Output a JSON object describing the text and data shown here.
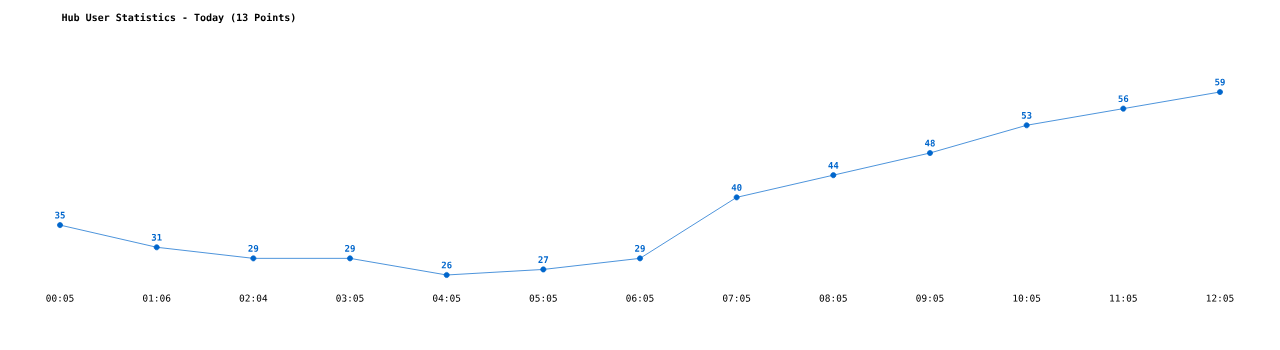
{
  "chart_data": {
    "type": "line",
    "title": "Hub User Statistics - Today (13 Points)",
    "categories": [
      "00:05",
      "01:06",
      "02:04",
      "03:05",
      "04:05",
      "05:05",
      "06:05",
      "07:05",
      "08:05",
      "09:05",
      "10:05",
      "11:05",
      "12:05"
    ],
    "values": [
      35,
      31,
      29,
      29,
      26,
      27,
      29,
      40,
      44,
      48,
      53,
      56,
      59
    ],
    "color": "#0066cc",
    "marker": "circle",
    "data_labels": true
  }
}
